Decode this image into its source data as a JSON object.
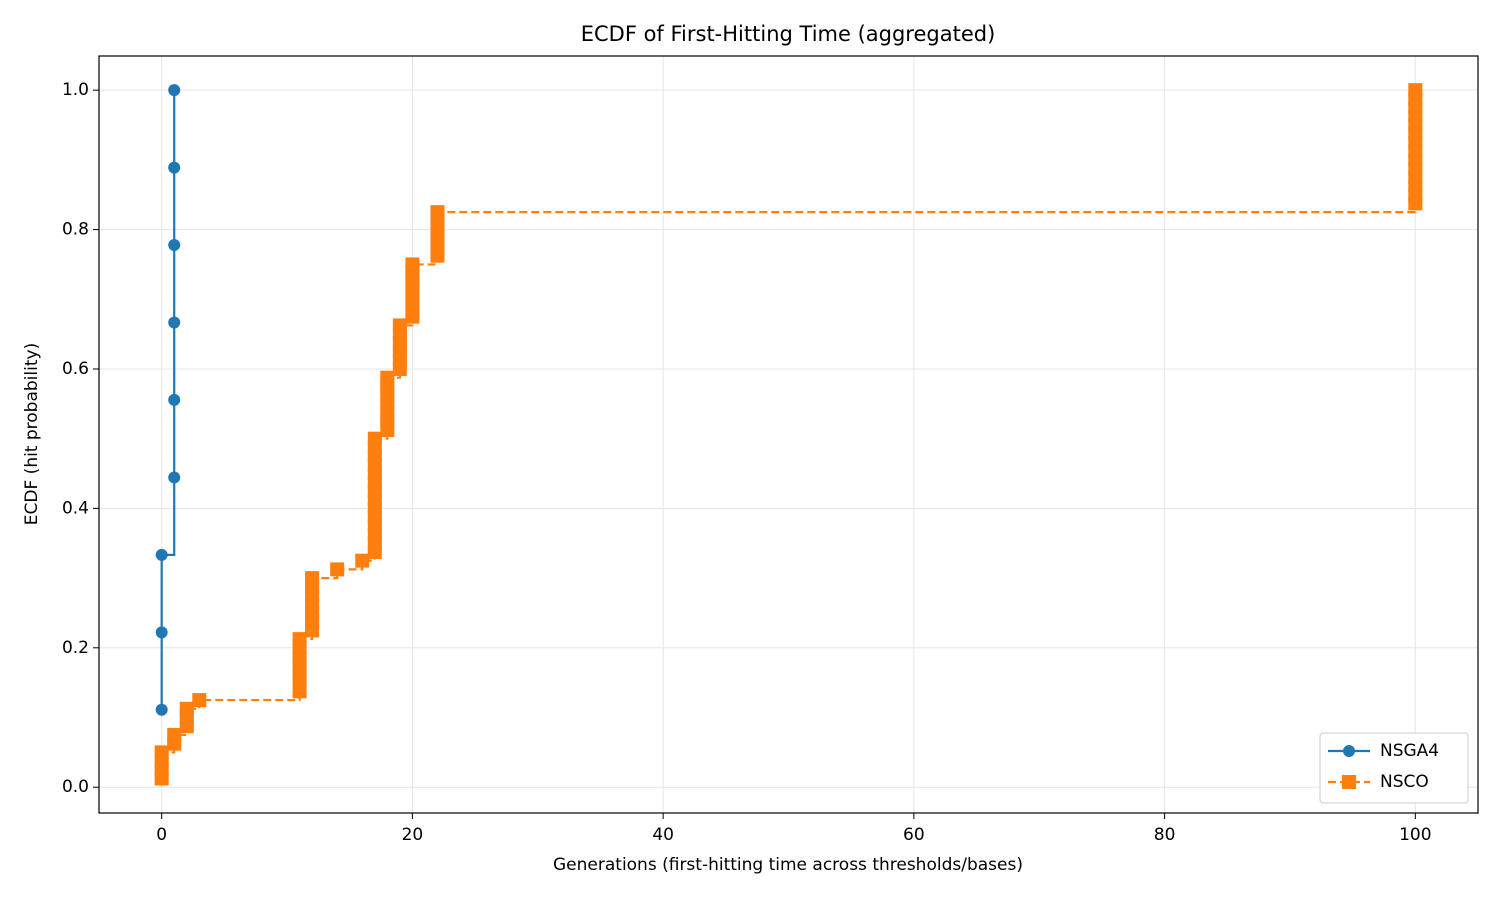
{
  "chart_data": {
    "type": "step",
    "title": "ECDF of First-Hitting Time (aggregated)",
    "x_label": "Generations (first-hitting time across thresholds/bases)",
    "y_label": "ECDF (hit probability)",
    "xlim": [
      -5,
      105
    ],
    "ylim": [
      -0.037,
      1.049
    ],
    "xticks": [
      0,
      20,
      40,
      60,
      80,
      100
    ],
    "yticks": [
      {
        "value": 0,
        "label": "0.0"
      },
      0.2,
      0.4,
      0.6,
      0.8,
      {
        "value": 1,
        "label": "1.0"
      }
    ],
    "grid": true,
    "legend": "lower right",
    "series": [
      {
        "name": "NSGA4",
        "color": "#1f77b4",
        "marker": "circle",
        "dashed": false,
        "x": [
          0,
          0,
          0,
          1,
          1,
          1,
          1,
          1,
          1
        ],
        "values": [
          0.1111,
          0.2222,
          0.3333,
          0.4444,
          0.5556,
          0.6667,
          0.7778,
          0.8889,
          1.0
        ]
      },
      {
        "name": "NSCO",
        "color": "#ff7f0e",
        "marker": "square",
        "dashed": true,
        "x": [
          0,
          0,
          0,
          0,
          1,
          1,
          2,
          2,
          2,
          3,
          11,
          11,
          11,
          11,
          11,
          11,
          11,
          12,
          12,
          12,
          12,
          12,
          12,
          12,
          14,
          16,
          17,
          17,
          17,
          17,
          17,
          17,
          17,
          17,
          17,
          17,
          17,
          17,
          17,
          17,
          18,
          18,
          18,
          18,
          18,
          18,
          18,
          19,
          19,
          19,
          19,
          19,
          19,
          20,
          20,
          20,
          20,
          20,
          20,
          20,
          22,
          22,
          22,
          22,
          22,
          22,
          100,
          100,
          100,
          100,
          100,
          100,
          100,
          100,
          100,
          100,
          100,
          100,
          100,
          100
        ],
        "values": [
          0.0125,
          0.025,
          0.0375,
          0.05,
          0.0625,
          0.075,
          0.0875,
          0.1,
          0.1125,
          0.125,
          0.1375,
          0.15,
          0.1625,
          0.175,
          0.1875,
          0.2,
          0.2125,
          0.225,
          0.2375,
          0.25,
          0.2625,
          0.275,
          0.2875,
          0.3,
          0.3125,
          0.325,
          0.3375,
          0.35,
          0.3625,
          0.375,
          0.3875,
          0.4,
          0.4125,
          0.425,
          0.4375,
          0.45,
          0.4625,
          0.475,
          0.4875,
          0.5,
          0.5125,
          0.525,
          0.5375,
          0.55,
          0.5625,
          0.575,
          0.5875,
          0.6,
          0.6125,
          0.625,
          0.6375,
          0.65,
          0.6625,
          0.675,
          0.6875,
          0.7,
          0.7125,
          0.725,
          0.7375,
          0.75,
          0.7625,
          0.775,
          0.7875,
          0.8,
          0.8125,
          0.825,
          0.8375,
          0.85,
          0.8625,
          0.875,
          0.8875,
          0.9,
          0.9125,
          0.925,
          0.9375,
          0.95,
          0.9625,
          0.975,
          0.9875,
          1.0
        ]
      }
    ]
  }
}
